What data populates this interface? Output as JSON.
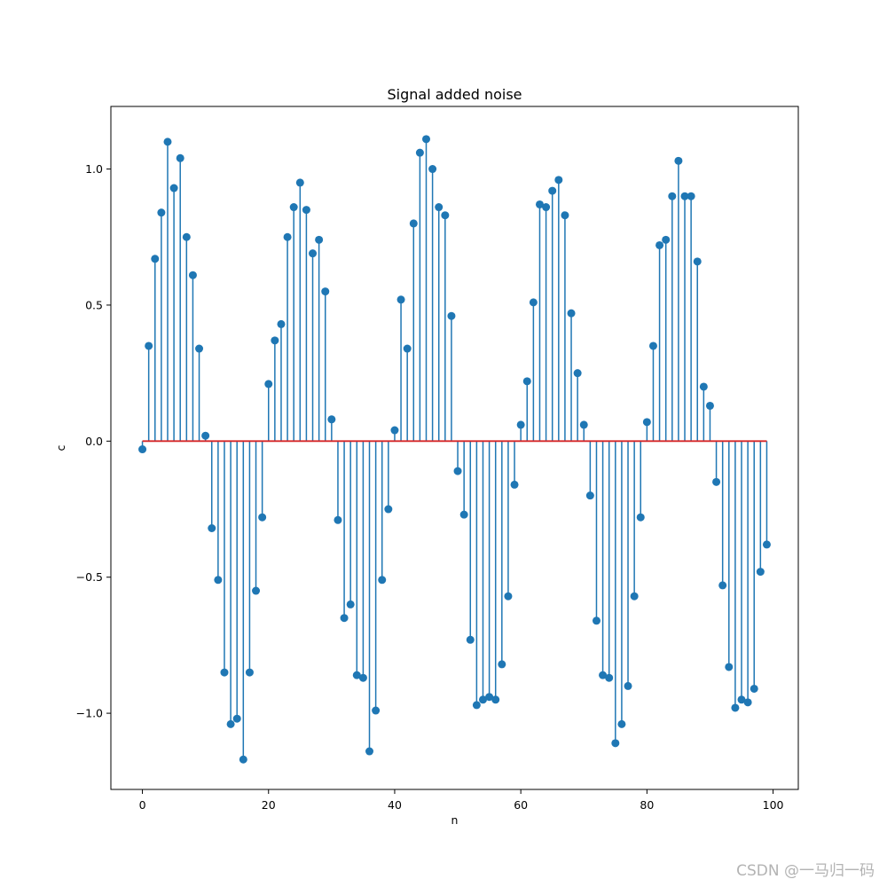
{
  "chart_data": {
    "type": "stem",
    "title": "Signal added noise",
    "xlabel": "n",
    "ylabel": "c",
    "xlim": [
      -5,
      104
    ],
    "ylim": [
      -1.28,
      1.23
    ],
    "xticks": [
      0,
      20,
      40,
      60,
      80,
      100
    ],
    "xtick_labels": [
      "0",
      "20",
      "40",
      "60",
      "80",
      "100"
    ],
    "yticks": [
      -1.0,
      -0.5,
      0.0,
      0.5,
      1.0
    ],
    "ytick_labels": [
      "−1.0",
      "−0.5",
      "0.0",
      "0.5",
      "1.0"
    ],
    "grid": false,
    "baseline": 0,
    "colors": {
      "stem": "#1f77b4",
      "marker": "#1f77b4",
      "baseline": "#d62728"
    },
    "x": [
      0,
      1,
      2,
      3,
      4,
      5,
      6,
      7,
      8,
      9,
      10,
      11,
      12,
      13,
      14,
      15,
      16,
      17,
      18,
      19,
      20,
      21,
      22,
      23,
      24,
      25,
      26,
      27,
      28,
      29,
      30,
      31,
      32,
      33,
      34,
      35,
      36,
      37,
      38,
      39,
      40,
      41,
      42,
      43,
      44,
      45,
      46,
      47,
      48,
      49,
      50,
      51,
      52,
      53,
      54,
      55,
      56,
      57,
      58,
      59,
      60,
      61,
      62,
      63,
      64,
      65,
      66,
      67,
      68,
      69,
      70,
      71,
      72,
      73,
      74,
      75,
      76,
      77,
      78,
      79,
      80,
      81,
      82,
      83,
      84,
      85,
      86,
      87,
      88,
      89,
      90,
      91,
      92,
      93,
      94,
      95,
      96,
      97,
      98,
      99
    ],
    "values": [
      -0.03,
      0.35,
      0.67,
      0.84,
      1.1,
      0.93,
      1.04,
      0.75,
      0.61,
      0.34,
      0.02,
      -0.32,
      -0.51,
      -0.85,
      -1.04,
      -1.02,
      -1.17,
      -0.85,
      -0.55,
      -0.28,
      0.21,
      0.37,
      0.43,
      0.75,
      0.86,
      0.95,
      0.85,
      0.69,
      0.74,
      0.55,
      0.08,
      -0.29,
      -0.65,
      -0.6,
      -0.86,
      -0.87,
      -1.14,
      -0.99,
      -0.51,
      -0.25,
      0.04,
      0.52,
      0.34,
      0.8,
      1.06,
      1.11,
      1.0,
      0.86,
      0.83,
      0.46,
      -0.11,
      -0.27,
      -0.73,
      -0.97,
      -0.95,
      -0.94,
      -0.95,
      -0.82,
      -0.57,
      -0.16,
      0.06,
      0.22,
      0.51,
      0.87,
      0.86,
      0.92,
      0.96,
      0.83,
      0.47,
      0.25,
      0.06,
      -0.2,
      -0.66,
      -0.86,
      -0.87,
      -1.11,
      -1.04,
      -0.9,
      -0.57,
      -0.28,
      0.07,
      0.35,
      0.72,
      0.74,
      0.9,
      1.03,
      0.9,
      0.9,
      0.66,
      0.2,
      0.13,
      -0.15,
      -0.53,
      -0.83,
      -0.98,
      -0.95,
      -0.96,
      -0.91,
      -0.48,
      -0.38
    ]
  },
  "watermark": "CSDN @一马归一码"
}
